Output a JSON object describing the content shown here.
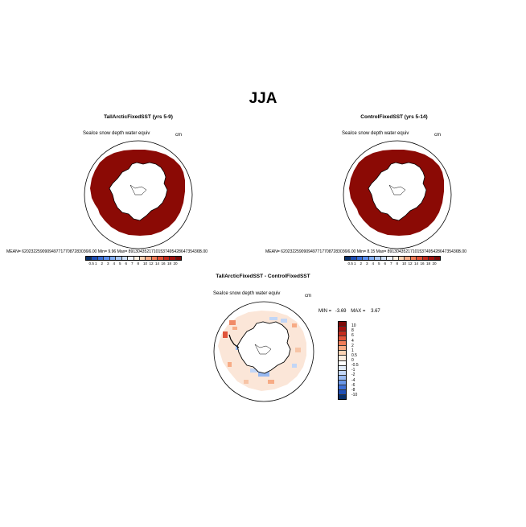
{
  "season": "JJA",
  "panels": [
    {
      "title": "TallArcticFixedSST (yrs 5-9)",
      "variable": "SeaIce snow depth water equiv",
      "units": "cm",
      "stats": "MEAN=  62023225909094977177087283036l6.00   Min=     9.96   Max=  8913043521710153749542864735436B.00"
    },
    {
      "title": "ControlFixedSST (yrs 5-14)",
      "variable": "SeaIce snow depth water equiv",
      "units": "cm",
      "stats": "MEAN=  62023225909094977177087283036l6.00   Min=     8.15   Max=  8913043521710153749542864735436B.00"
    }
  ],
  "diff_panel": {
    "title": "TallArcticFixedSST - ControlFixedSST",
    "variable": "SeaIce snow depth water equiv",
    "units": "cm",
    "min_label": "MIN =",
    "min_value": "-3.69",
    "max_label": "MAX =",
    "max_value": "3.67"
  },
  "colorbar_top": {
    "ticks": [
      "0.5",
      "1",
      "2",
      "3",
      "4",
      "5",
      "6",
      "7",
      "8",
      "10",
      "12",
      "14",
      "16",
      "18",
      "20"
    ],
    "colors": [
      "#08306b",
      "#1f4fb5",
      "#3a6fd8",
      "#5b8ff0",
      "#82aef5",
      "#a9c8f7",
      "#cddff8",
      "#eef3fb",
      "#fdeee0",
      "#fbd2b4",
      "#f7ab85",
      "#f07d59",
      "#e0543a",
      "#c42c1e",
      "#a3120f",
      "#7e0a08"
    ]
  },
  "colorbar_diff": {
    "ticks": [
      "10",
      "8",
      "6",
      "4",
      "2",
      "1",
      "0.5",
      "0",
      "-0.5",
      "-1",
      "-2",
      "-4",
      "-6",
      "-8",
      "-10"
    ],
    "colors": [
      "#7e0a08",
      "#a3120f",
      "#c42c1e",
      "#e0543a",
      "#f07d59",
      "#f7ab85",
      "#fbd2b4",
      "#fdeee0",
      "#ffffff",
      "#e3ecfa",
      "#c2d6f6",
      "#98b9f1",
      "#6a97e8",
      "#3f70d6",
      "#1f4fb5",
      "#08306b"
    ]
  }
}
